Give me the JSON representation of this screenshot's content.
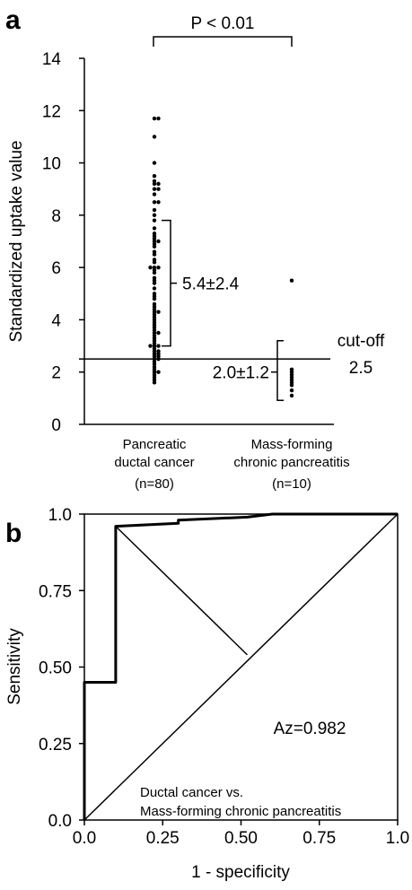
{
  "panels": {
    "a_label": "a",
    "b_label": "b"
  },
  "chart_data": [
    {
      "type": "scatter",
      "subtype": "dot-strip",
      "ylabel": "Standardized uptake value",
      "ylim": [
        0,
        14
      ],
      "yticks": [
        "0",
        "2",
        "4",
        "6",
        "8",
        "10",
        "12",
        "14"
      ],
      "categories": [
        {
          "line1": "Pancreatic",
          "line2": "ductal cancer",
          "line3": "(n=80)"
        },
        {
          "line1": "Mass-forming",
          "line2": "chronic pancreatitis",
          "line3": "(n=10)"
        }
      ],
      "significance": "P < 0.01",
      "cutoff": {
        "label": "cut-off",
        "value_label": "2.5",
        "value": 2.5
      },
      "group_summaries": [
        {
          "label": "5.4±2.4",
          "mean": 5.4,
          "sd": 2.4
        },
        {
          "label": "2.0±1.2",
          "mean": 2.0,
          "sd": 1.2
        }
      ],
      "series": [
        {
          "values": [
            11.7,
            11.7,
            11.0,
            10.0,
            9.5,
            9.3,
            9.2,
            9.2,
            9.0,
            9.0,
            8.8,
            8.5,
            8.5,
            8.2,
            8.0,
            7.8,
            7.5,
            7.3,
            7.2,
            7.1,
            7.0,
            7.0,
            6.9,
            6.8,
            6.6,
            6.5,
            6.3,
            6.2,
            6.0,
            6.0,
            6.0,
            5.9,
            5.8,
            5.6,
            5.5,
            5.4,
            5.2,
            5.0,
            4.9,
            4.8,
            4.6,
            4.5,
            4.4,
            4.3,
            4.3,
            4.2,
            4.1,
            4.0,
            3.9,
            3.8,
            3.7,
            3.6,
            3.5,
            3.5,
            3.4,
            3.3,
            3.2,
            3.1,
            3.0,
            3.0,
            3.0,
            2.9,
            2.8,
            2.8,
            2.7,
            2.7,
            2.6,
            2.6,
            2.5,
            2.5,
            2.4,
            2.3,
            2.2,
            2.1,
            2.0,
            2.0,
            1.9,
            1.8,
            1.7,
            1.6
          ]
        },
        {
          "values": [
            5.5,
            2.1,
            2.0,
            1.9,
            1.8,
            1.7,
            1.6,
            1.5,
            1.3,
            1.1
          ]
        }
      ]
    },
    {
      "type": "line",
      "subtype": "roc",
      "xlabel": "1 - specificity",
      "ylabel": "Sensitivity",
      "xlim": [
        0,
        1
      ],
      "ylim": [
        0,
        1
      ],
      "xticks": [
        "0.0",
        "0.25",
        "0.50",
        "0.75",
        "1.0"
      ],
      "yticks": [
        "0.0",
        "0.25",
        "0.50",
        "0.75",
        "1.0"
      ],
      "annotation": "Az=0.982",
      "note_line1": "Ductal cancer vs.",
      "note_line2": "Mass-forming chronic pancreatitis",
      "roc_curve": {
        "x": [
          0.0,
          0.0,
          0.0,
          0.1,
          0.1,
          0.3,
          0.3,
          0.52,
          0.6,
          1.0
        ],
        "y": [
          0.0,
          0.45,
          0.45,
          0.45,
          0.96,
          0.97,
          0.98,
          0.99,
          1.0,
          1.0
        ]
      },
      "reference_line": {
        "x": [
          0,
          1
        ],
        "y": [
          0,
          1
        ]
      },
      "youden_line": {
        "x": [
          0.1,
          0.52
        ],
        "y": [
          0.96,
          0.54
        ]
      }
    }
  ]
}
